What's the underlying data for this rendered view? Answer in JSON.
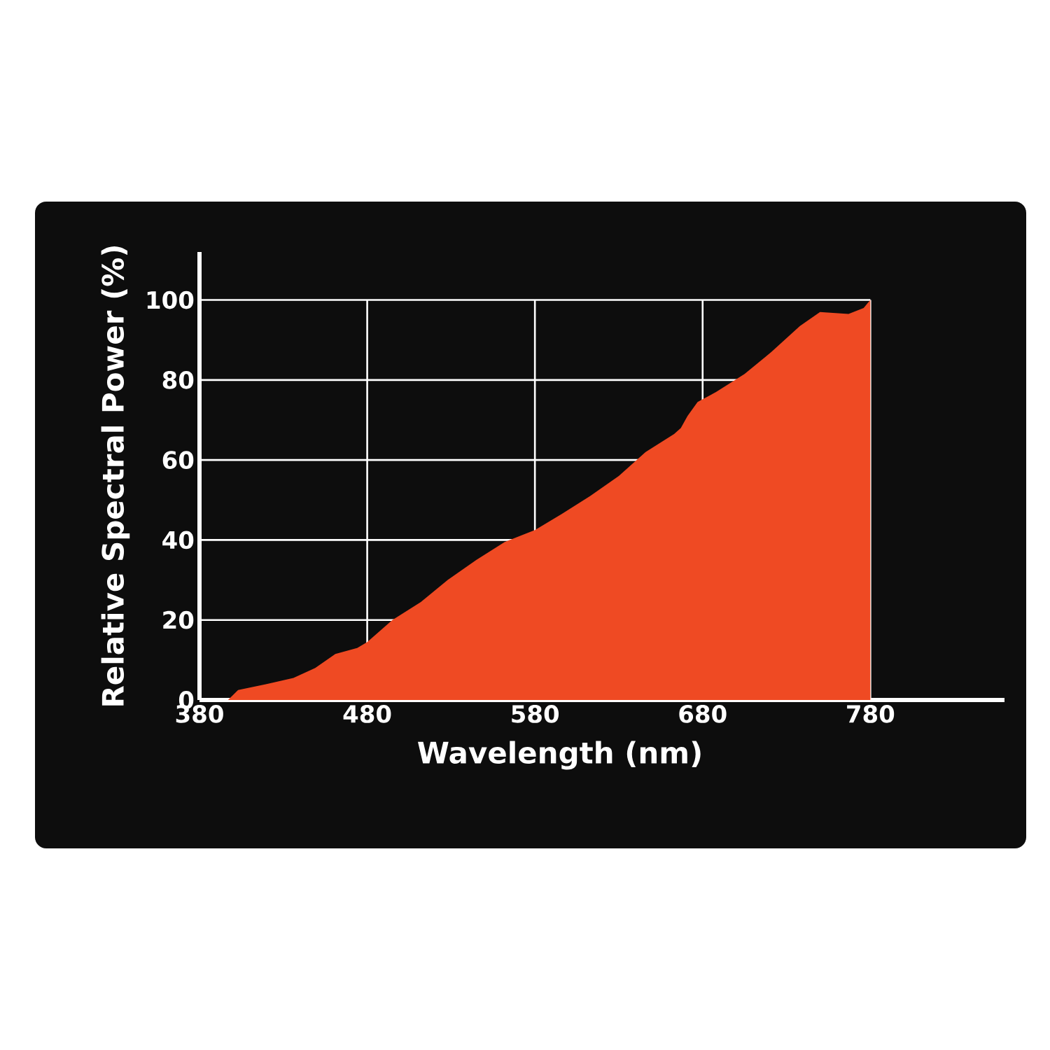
{
  "chart_data": {
    "type": "area",
    "xlabel": "Wavelength (nm)",
    "ylabel": "Relative Spectral Power (%)",
    "xlim": [
      380,
      860
    ],
    "ylim": [
      0,
      112
    ],
    "xticks": [
      380,
      480,
      580,
      680,
      780
    ],
    "yticks": [
      0,
      20,
      40,
      60,
      80,
      100
    ],
    "grid": true,
    "series": [
      {
        "x": [
          397,
          403,
          420,
          436,
          449,
          461,
          474,
          480,
          495,
          512,
          528,
          545,
          562,
          580,
          596,
          613,
          630,
          646,
          663,
          667,
          671,
          677,
          688,
          705,
          721,
          738,
          750,
          767,
          776,
          780
        ],
        "values": [
          0,
          2.5,
          4,
          5.5,
          8,
          11.5,
          13,
          14.5,
          20,
          24.5,
          30,
          35,
          39.5,
          42.5,
          46.5,
          51,
          56,
          62,
          66.5,
          68,
          71,
          74.5,
          77,
          81.5,
          87,
          93.5,
          97,
          96.5,
          98,
          100
        ],
        "color": "#ef4a23"
      }
    ]
  }
}
